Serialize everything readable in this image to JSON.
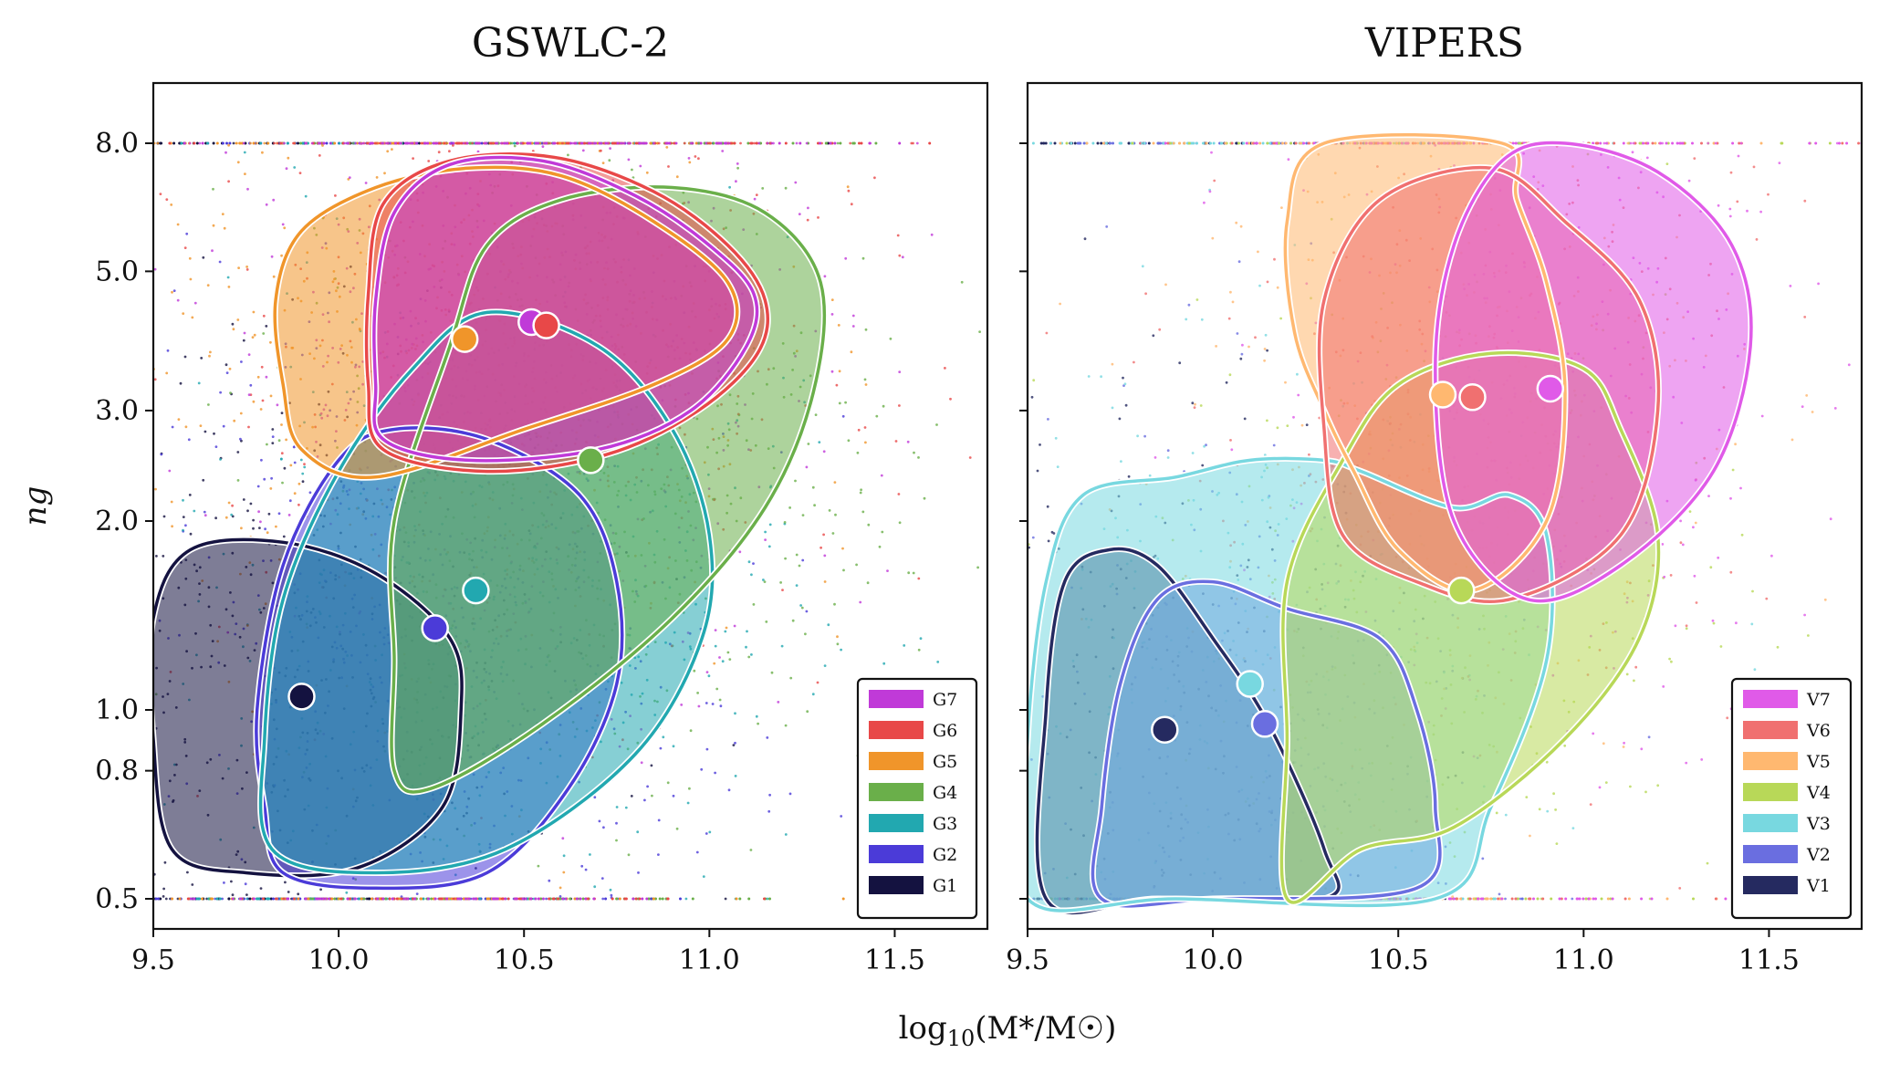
{
  "chart_data": [
    {
      "type": "scatter",
      "subtype": "density-contour",
      "title": "GSWLC-2",
      "xlabel": "log10(M*/M☉)",
      "ylabel": "n_g",
      "xlim": [
        9.5,
        11.75
      ],
      "ylim": [
        0.45,
        10.5
      ],
      "yscale": "log",
      "xticks": [
        "9.5",
        "10.0",
        "10.5",
        "11.0",
        "11.5"
      ],
      "yticks": [
        "0.5",
        "0.8",
        "1.0",
        "2.0",
        "3.0",
        "5.0",
        "8.0"
      ],
      "legend_position": "bottom-right",
      "series": [
        {
          "name": "G7",
          "color": "#c03ad8",
          "center": [
            10.52,
            4.15
          ],
          "contour": [
            [
              10.12,
              2.7
            ],
            [
              10.35,
              2.5
            ],
            [
              10.7,
              2.6
            ],
            [
              10.95,
              3.0
            ],
            [
              11.1,
              3.8
            ],
            [
              11.12,
              4.6
            ],
            [
              11.0,
              5.5
            ],
            [
              10.8,
              6.6
            ],
            [
              10.55,
              7.5
            ],
            [
              10.3,
              7.4
            ],
            [
              10.15,
              6.2
            ],
            [
              10.1,
              4.5
            ],
            [
              10.1,
              3.3
            ]
          ]
        },
        {
          "name": "G6",
          "color": "#e84848",
          "center": [
            10.56,
            4.1
          ],
          "contour": [
            [
              10.12,
              2.6
            ],
            [
              10.4,
              2.4
            ],
            [
              10.72,
              2.55
            ],
            [
              10.97,
              3.0
            ],
            [
              11.13,
              3.7
            ],
            [
              11.15,
              4.5
            ],
            [
              11.05,
              5.5
            ],
            [
              10.85,
              6.7
            ],
            [
              10.58,
              7.6
            ],
            [
              10.3,
              7.5
            ],
            [
              10.12,
              6.4
            ],
            [
              10.08,
              4.6
            ],
            [
              10.08,
              3.3
            ]
          ]
        },
        {
          "name": "G5",
          "color": "#f0952a",
          "center": [
            10.34,
            3.9
          ],
          "contour": [
            [
              9.9,
              2.6
            ],
            [
              10.1,
              2.35
            ],
            [
              10.5,
              2.8
            ],
            [
              10.85,
              3.3
            ],
            [
              11.05,
              3.9
            ],
            [
              11.05,
              4.8
            ],
            [
              10.85,
              6.0
            ],
            [
              10.6,
              7.1
            ],
            [
              10.35,
              7.3
            ],
            [
              10.1,
              6.8
            ],
            [
              9.9,
              5.8
            ],
            [
              9.83,
              4.5
            ],
            [
              9.85,
              3.3
            ]
          ]
        },
        {
          "name": "G4",
          "color": "#6aaf4a",
          "center": [
            10.68,
            2.5
          ],
          "contour": [
            [
              10.15,
              0.8
            ],
            [
              10.25,
              0.75
            ],
            [
              10.55,
              0.95
            ],
            [
              10.9,
              1.4
            ],
            [
              11.15,
              2.1
            ],
            [
              11.28,
              3.2
            ],
            [
              11.3,
              4.8
            ],
            [
              11.15,
              6.2
            ],
            [
              10.9,
              6.8
            ],
            [
              10.6,
              6.5
            ],
            [
              10.4,
              5.5
            ],
            [
              10.3,
              3.8
            ],
            [
              10.15,
              2.0
            ],
            [
              10.15,
              1.2
            ]
          ]
        },
        {
          "name": "G3",
          "color": "#22a8b0",
          "center": [
            10.37,
            1.55
          ],
          "contour": [
            [
              9.82,
              0.6
            ],
            [
              10.1,
              0.55
            ],
            [
              10.45,
              0.6
            ],
            [
              10.8,
              0.85
            ],
            [
              10.98,
              1.3
            ],
            [
              11.0,
              1.9
            ],
            [
              10.9,
              2.8
            ],
            [
              10.7,
              3.8
            ],
            [
              10.4,
              4.3
            ],
            [
              10.2,
              3.5
            ],
            [
              10.0,
              2.4
            ],
            [
              9.85,
              1.5
            ],
            [
              9.8,
              0.9
            ]
          ]
        },
        {
          "name": "G2",
          "color": "#4b3bd8",
          "center": [
            10.26,
            1.35
          ],
          "contour": [
            [
              9.85,
              0.55
            ],
            [
              10.1,
              0.52
            ],
            [
              10.4,
              0.55
            ],
            [
              10.62,
              0.75
            ],
            [
              10.75,
              1.1
            ],
            [
              10.75,
              1.6
            ],
            [
              10.65,
              2.2
            ],
            [
              10.4,
              2.7
            ],
            [
              10.15,
              2.8
            ],
            [
              10.0,
              2.5
            ],
            [
              9.85,
              1.7
            ],
            [
              9.78,
              1.0
            ],
            [
              9.8,
              0.7
            ]
          ]
        },
        {
          "name": "G1",
          "color": "#141240",
          "center": [
            9.9,
            1.05
          ],
          "contour": [
            [
              9.55,
              0.6
            ],
            [
              9.75,
              0.55
            ],
            [
              10.05,
              0.56
            ],
            [
              10.28,
              0.7
            ],
            [
              10.33,
              1.0
            ],
            [
              10.3,
              1.3
            ],
            [
              10.1,
              1.65
            ],
            [
              9.85,
              1.85
            ],
            [
              9.6,
              1.8
            ],
            [
              9.5,
              1.4
            ],
            [
              9.5,
              0.9
            ]
          ]
        }
      ]
    },
    {
      "type": "scatter",
      "subtype": "density-contour",
      "title": "VIPERS",
      "xlabel": "log10(M*/M☉)",
      "ylabel": "n_g",
      "xlim": [
        9.5,
        11.75
      ],
      "ylim": [
        0.45,
        10.5
      ],
      "yscale": "log",
      "xticks": [
        "9.5",
        "10.0",
        "10.5",
        "11.0",
        "11.5"
      ],
      "yticks": [
        "0.5",
        "0.8",
        "1.0",
        "2.0",
        "3.0",
        "5.0",
        "8.0"
      ],
      "legend_position": "bottom-right",
      "series": [
        {
          "name": "V7",
          "color": "#e05ae8",
          "center": [
            10.91,
            3.25
          ],
          "contour": [
            [
              10.65,
              2.0
            ],
            [
              10.85,
              1.5
            ],
            [
              11.1,
              1.7
            ],
            [
              11.35,
              2.4
            ],
            [
              11.45,
              3.8
            ],
            [
              11.4,
              5.5
            ],
            [
              11.2,
              7.2
            ],
            [
              10.95,
              8.0
            ],
            [
              10.78,
              7.5
            ],
            [
              10.65,
              5.5
            ],
            [
              10.6,
              3.5
            ]
          ]
        },
        {
          "name": "V6",
          "color": "#f07070",
          "center": [
            10.7,
            3.15
          ],
          "contour": [
            [
              10.35,
              1.9
            ],
            [
              10.55,
              1.6
            ],
            [
              10.8,
              1.5
            ],
            [
              11.1,
              1.9
            ],
            [
              11.2,
              3.0
            ],
            [
              11.15,
              4.5
            ],
            [
              10.95,
              6.0
            ],
            [
              10.75,
              7.3
            ],
            [
              10.45,
              6.5
            ],
            [
              10.3,
              4.5
            ],
            [
              10.3,
              2.8
            ]
          ]
        },
        {
          "name": "V5",
          "color": "#ffb870",
          "center": [
            10.62,
            3.18
          ],
          "contour": [
            [
              10.38,
              2.4
            ],
            [
              10.5,
              1.8
            ],
            [
              10.7,
              1.55
            ],
            [
              10.9,
              2.0
            ],
            [
              10.95,
              3.2
            ],
            [
              10.9,
              4.8
            ],
            [
              10.82,
              6.5
            ],
            [
              10.78,
              8.0
            ],
            [
              10.3,
              8.0
            ],
            [
              10.2,
              6.0
            ],
            [
              10.22,
              4.0
            ],
            [
              10.3,
              3.0
            ]
          ]
        },
        {
          "name": "V4",
          "color": "#b8d858",
          "center": [
            10.67,
            1.55
          ],
          "contour": [
            [
              10.2,
              0.5
            ],
            [
              10.4,
              0.6
            ],
            [
              10.65,
              0.65
            ],
            [
              10.95,
              0.9
            ],
            [
              11.15,
              1.3
            ],
            [
              11.2,
              1.9
            ],
            [
              11.1,
              2.8
            ],
            [
              11.0,
              3.5
            ],
            [
              10.75,
              3.7
            ],
            [
              10.5,
              3.3
            ],
            [
              10.35,
              2.5
            ],
            [
              10.2,
              1.6
            ],
            [
              10.2,
              0.9
            ]
          ]
        },
        {
          "name": "V3",
          "color": "#78d8e0",
          "center": [
            10.1,
            1.1
          ],
          "contour": [
            [
              9.5,
              0.5
            ],
            [
              9.9,
              0.5
            ],
            [
              10.6,
              0.5
            ],
            [
              10.75,
              0.7
            ],
            [
              10.9,
              1.2
            ],
            [
              10.9,
              1.9
            ],
            [
              10.8,
              2.2
            ],
            [
              10.65,
              2.1
            ],
            [
              10.4,
              2.4
            ],
            [
              10.3,
              2.5
            ],
            [
              10.1,
              2.5
            ],
            [
              9.9,
              2.35
            ],
            [
              9.65,
              2.2
            ],
            [
              9.55,
              1.6
            ],
            [
              9.5,
              0.9
            ]
          ]
        },
        {
          "name": "V2",
          "color": "#6a6ee0",
          "center": [
            10.14,
            0.95
          ],
          "contour": [
            [
              9.7,
              0.5
            ],
            [
              10.0,
              0.5
            ],
            [
              10.55,
              0.52
            ],
            [
              10.6,
              0.7
            ],
            [
              10.55,
              1.0
            ],
            [
              10.45,
              1.3
            ],
            [
              10.2,
              1.45
            ],
            [
              10.0,
              1.6
            ],
            [
              9.85,
              1.5
            ],
            [
              9.75,
              1.1
            ],
            [
              9.7,
              0.7
            ]
          ]
        },
        {
          "name": "V1",
          "color": "#252a60",
          "center": [
            9.87,
            0.93
          ],
          "contour": [
            [
              9.55,
              0.5
            ],
            [
              9.85,
              0.5
            ],
            [
              10.3,
              0.5
            ],
            [
              10.3,
              0.6
            ],
            [
              10.15,
              0.95
            ],
            [
              10.0,
              1.3
            ],
            [
              9.85,
              1.7
            ],
            [
              9.72,
              1.8
            ],
            [
              9.6,
              1.6
            ],
            [
              9.55,
              1.0
            ]
          ]
        }
      ]
    }
  ],
  "shared_xlabel": "log10(M*/M☉)"
}
